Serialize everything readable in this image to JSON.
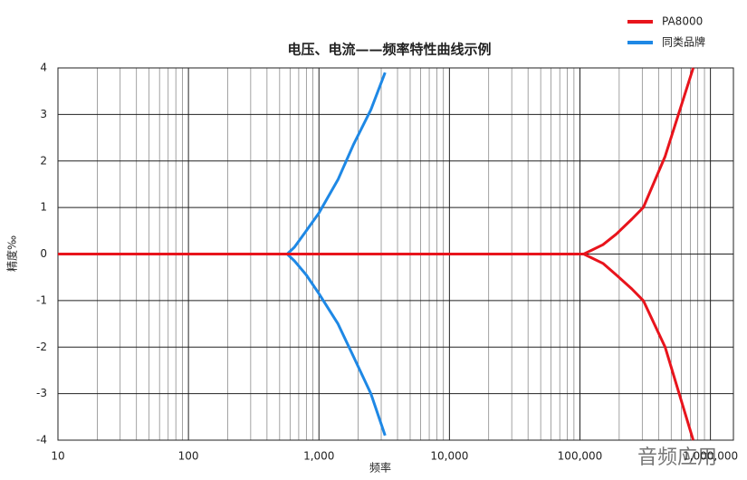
{
  "chart_data": {
    "type": "line",
    "title": "电压、电流——频率特性曲线示例",
    "xlabel": "频率",
    "ylabel": "精度‰",
    "xscale": "log",
    "x_minor_grid": true,
    "grid": true,
    "legend": "top-right",
    "xlim": [
      10,
      1500000
    ],
    "xticks": [
      10,
      100,
      {
        "value": 1000,
        "label": "1,000"
      },
      {
        "value": 10000,
        "label": "10,000"
      },
      {
        "value": 100000,
        "label": "100,000"
      },
      {
        "value": 1000000,
        "label": "1,000,000"
      }
    ],
    "ylim": [
      -4,
      4
    ],
    "yticks": [
      -4,
      -3,
      -2,
      -1,
      0,
      1,
      2,
      3,
      4
    ],
    "series": [
      {
        "name": "同类品牌",
        "color": "#1e88e5",
        "x": [
          10,
          571,
          650,
          800,
          1000,
          1400,
          1837,
          2500,
          3215
        ],
        "upper": [
          0,
          0,
          0.15,
          0.5,
          0.88,
          1.6,
          2.35,
          3.1,
          3.9
        ],
        "lower": [
          0,
          0,
          -0.15,
          -0.45,
          -0.85,
          -1.5,
          -2.2,
          -3.0,
          -3.9
        ]
      },
      {
        "name": "PA8000",
        "color": "#e8141c",
        "x": [
          10,
          107000,
          150000,
          190000,
          250000,
          306000,
          450000,
          738000
        ],
        "upper": [
          0,
          0,
          0.2,
          0.43,
          0.75,
          1.0,
          2.1,
          4
        ],
        "lower": [
          0,
          0,
          -0.2,
          -0.45,
          -0.75,
          -1.0,
          -2.0,
          -4
        ]
      }
    ],
    "watermark": "音频应用"
  }
}
